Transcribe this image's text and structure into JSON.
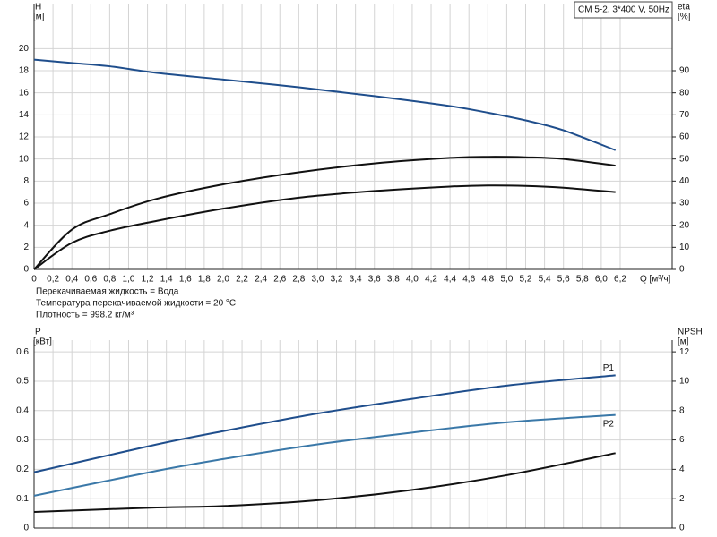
{
  "chart_data": [
    {
      "type": "line",
      "title": "CM 5-2, 3*400 V, 50Hz",
      "ylabel": "H",
      "ylabel_unit": "[м]",
      "y2label": "eta",
      "y2label_unit": "[%]",
      "xlabel": "Q [м³/ч]",
      "annotations": [
        "Перекачиваемая жидкость = Вода",
        "Температура перекачиваемой жидкости = 20 °C",
        "Плотность = 998.2 кг/м³"
      ],
      "x": [
        0,
        0.4,
        0.8,
        1.3,
        2.0,
        2.8,
        3.6,
        4.4,
        4.8,
        5.2,
        5.6,
        6.15
      ],
      "series": [
        {
          "color": "#1f4e8c",
          "values": [
            19.0,
            18.7,
            18.4,
            17.8,
            17.2,
            16.5,
            15.7,
            14.8,
            14.2,
            13.5,
            12.6,
            10.8
          ]
        },
        {
          "color": "#111111",
          "axis": "y2",
          "values": [
            0,
            18,
            25,
            32,
            38.5,
            44,
            48,
            50.5,
            51,
            50.8,
            50,
            47
          ]
        },
        {
          "color": "#111111",
          "axis": "y2",
          "values": [
            0,
            12,
            17.5,
            22,
            27.5,
            32.5,
            35.5,
            37.5,
            38,
            37.8,
            37,
            35
          ]
        }
      ],
      "xlim": [
        0,
        6.75
      ],
      "xticks": [
        0,
        {
          "value": 0.2,
          "label": "0,2"
        },
        {
          "value": 0.4,
          "label": "0,4"
        },
        {
          "value": 0.6,
          "label": "0,6"
        },
        {
          "value": 0.8,
          "label": "0,8"
        },
        {
          "value": 1.0,
          "label": "1,0"
        },
        {
          "value": 1.2,
          "label": "1,2"
        },
        {
          "value": 1.4,
          "label": "1,4"
        },
        {
          "value": 1.6,
          "label": "1,6"
        },
        {
          "value": 1.8,
          "label": "1,8"
        },
        {
          "value": 2.0,
          "label": "2,0"
        },
        {
          "value": 2.2,
          "label": "2,2"
        },
        {
          "value": 2.4,
          "label": "2,4"
        },
        {
          "value": 2.6,
          "label": "2,6"
        },
        {
          "value": 2.8,
          "label": "2,8"
        },
        {
          "value": 3.0,
          "label": "3,0"
        },
        {
          "value": 3.2,
          "label": "3,2"
        },
        {
          "value": 3.4,
          "label": "3,4"
        },
        {
          "value": 3.6,
          "label": "3,6"
        },
        {
          "value": 3.8,
          "label": "3,8"
        },
        {
          "value": 4.0,
          "label": "4,0"
        },
        {
          "value": 4.2,
          "label": "4,2"
        },
        {
          "value": 4.4,
          "label": "4,4"
        },
        {
          "value": 4.6,
          "label": "4,6"
        },
        {
          "value": 4.8,
          "label": "4,8"
        },
        {
          "value": 5.0,
          "label": "5,0"
        },
        {
          "value": 5.2,
          "label": "5,2"
        },
        {
          "value": 5.4,
          "label": "5,4"
        },
        {
          "value": 5.6,
          "label": "5,6"
        },
        {
          "value": 5.8,
          "label": "5,8"
        },
        {
          "value": 6.0,
          "label": "6,0"
        },
        {
          "value": 6.2,
          "label": "6,2"
        }
      ],
      "ylim": [
        0,
        24
      ],
      "yticks": [
        0,
        2,
        4,
        6,
        8,
        10,
        12,
        14,
        16,
        18,
        20
      ],
      "y2lim": [
        0,
        120
      ],
      "y2ticks": [
        0,
        10,
        20,
        30,
        40,
        50,
        60,
        70,
        80,
        90
      ],
      "grid": true
    },
    {
      "type": "line",
      "ylabel": "P",
      "ylabel_unit": "[кВт]",
      "y2label": "NPSH",
      "y2label_unit": "[м]",
      "x": [
        0,
        1.3,
        2.0,
        3.0,
        4.0,
        5.0,
        6.15
      ],
      "series": [
        {
          "name": "P1",
          "color": "#1f4e8c",
          "values": [
            0.19,
            0.285,
            0.33,
            0.39,
            0.44,
            0.485,
            0.52
          ]
        },
        {
          "name": "P2",
          "color": "#3a78a8",
          "values": [
            0.11,
            0.195,
            0.235,
            0.285,
            0.325,
            0.36,
            0.385
          ]
        },
        {
          "color": "#111111",
          "axis": "y2",
          "values": [
            1.1,
            1.4,
            1.5,
            1.9,
            2.6,
            3.6,
            5.1
          ]
        }
      ],
      "xlim": [
        0,
        6.75
      ],
      "xticks": [
        0,
        0.2,
        0.4,
        0.6,
        0.8,
        1.0,
        1.2,
        1.4,
        1.6,
        1.8,
        2.0,
        2.2,
        2.4,
        2.6,
        2.8,
        3.0,
        3.2,
        3.4,
        3.6,
        3.8,
        4.0,
        4.2,
        4.4,
        4.6,
        4.8,
        5.0,
        5.2,
        5.4,
        5.6,
        5.8,
        6.0,
        6.2
      ],
      "x_tick_labels": false,
      "ylim": [
        0,
        0.64
      ],
      "yticks": [
        0,
        0.1,
        0.2,
        0.3,
        0.4,
        0.5,
        0.6
      ],
      "y2lim": [
        0,
        12.8
      ],
      "y2ticks": [
        0,
        2,
        4,
        6,
        8,
        10,
        12
      ],
      "grid": true
    }
  ]
}
